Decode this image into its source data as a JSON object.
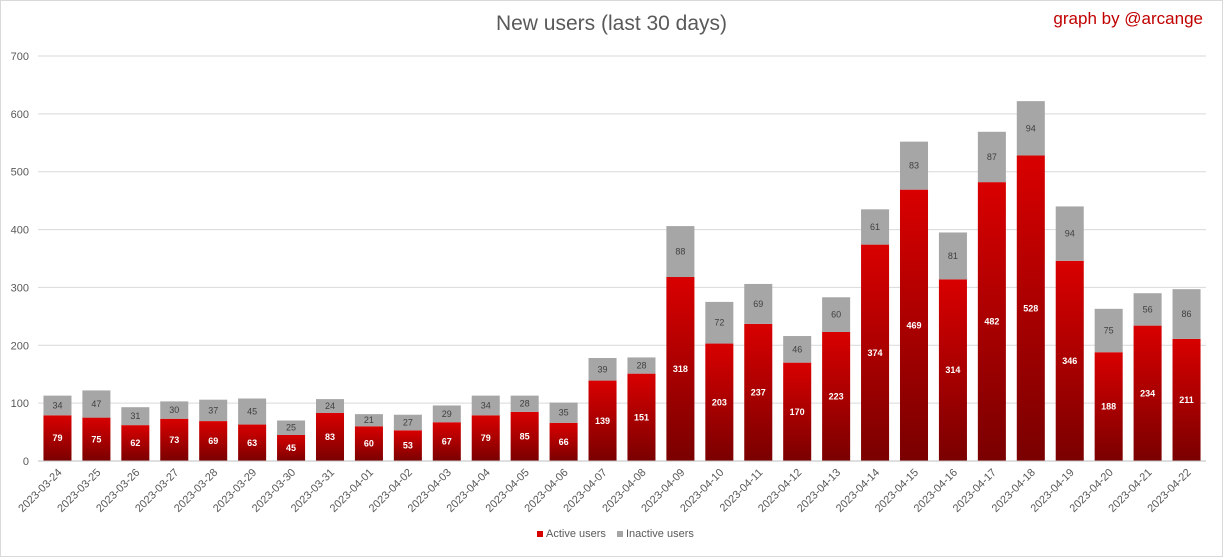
{
  "title": "New users (last 30 days)",
  "credit": "graph by @arcange",
  "colors": {
    "active_top": "#d90000",
    "active_bottom": "#7a0000",
    "inactive": "#a6a6a6",
    "grid": "#d9d9d9"
  },
  "chart_data": {
    "type": "bar",
    "stacked": true,
    "title": "New users (last 30 days)",
    "xlabel": "",
    "ylabel": "",
    "ylim": [
      0,
      700
    ],
    "yticks": [
      0,
      100,
      200,
      300,
      400,
      500,
      600,
      700
    ],
    "grid": "horizontal",
    "legend_position": "bottom",
    "categories": [
      "2023-03-24",
      "2023-03-25",
      "2023-03-26",
      "2023-03-27",
      "2023-03-28",
      "2023-03-29",
      "2023-03-30",
      "2023-03-31",
      "2023-04-01",
      "2023-04-02",
      "2023-04-03",
      "2023-04-04",
      "2023-04-05",
      "2023-04-06",
      "2023-04-07",
      "2023-04-08",
      "2023-04-09",
      "2023-04-10",
      "2023-04-11",
      "2023-04-12",
      "2023-04-13",
      "2023-04-14",
      "2023-04-15",
      "2023-04-16",
      "2023-04-17",
      "2023-04-18",
      "2023-04-19",
      "2023-04-20",
      "2023-04-21",
      "2023-04-22"
    ],
    "series": [
      {
        "name": "Active users",
        "values": [
          79,
          75,
          62,
          73,
          69,
          63,
          45,
          83,
          60,
          53,
          67,
          79,
          85,
          66,
          139,
          151,
          318,
          203,
          237,
          170,
          223,
          374,
          469,
          314,
          482,
          528,
          346,
          188,
          234,
          211
        ]
      },
      {
        "name": "Inactive users",
        "values": [
          34,
          47,
          31,
          30,
          37,
          45,
          25,
          24,
          21,
          27,
          29,
          34,
          28,
          35,
          39,
          28,
          88,
          72,
          69,
          46,
          60,
          61,
          83,
          81,
          87,
          94,
          94,
          75,
          56,
          86
        ]
      }
    ]
  }
}
